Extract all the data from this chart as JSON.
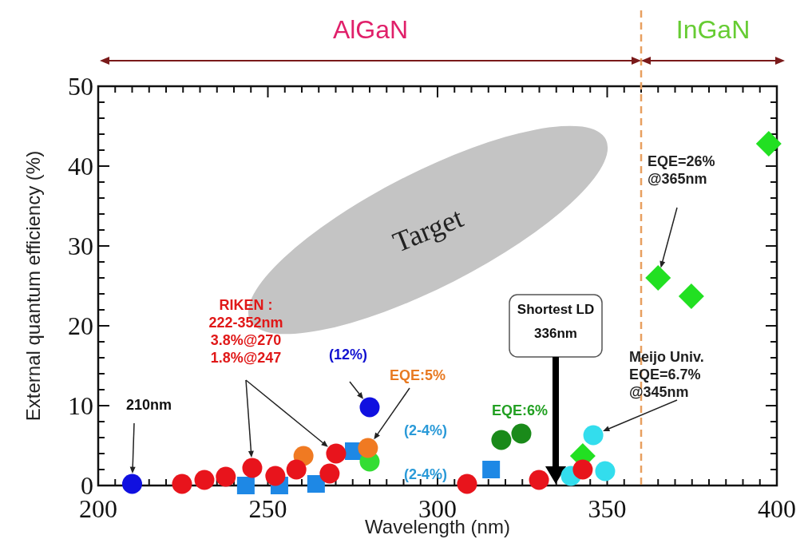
{
  "chart_data": {
    "type": "scatter",
    "xlabel": "Wavelength (nm)",
    "ylabel": "External quantum efficiency (%)",
    "xlim": [
      200,
      400
    ],
    "ylim": [
      0,
      50
    ],
    "xticks": [
      200,
      {
        "value": 205,
        "label": null
      },
      {
        "value": 210,
        "label": null
      },
      {
        "value": 215,
        "label": null
      },
      {
        "value": 220,
        "label": null
      },
      {
        "value": 225,
        "label": null
      },
      {
        "value": 230,
        "label": null
      },
      {
        "value": 235,
        "label": null
      },
      {
        "value": 240,
        "label": null
      },
      {
        "value": 245,
        "label": null
      },
      250,
      {
        "value": 255,
        "label": null
      },
      {
        "value": 260,
        "label": null
      },
      {
        "value": 265,
        "label": null
      },
      {
        "value": 270,
        "label": null
      },
      {
        "value": 275,
        "label": null
      },
      {
        "value": 280,
        "label": null
      },
      {
        "value": 285,
        "label": null
      },
      {
        "value": 290,
        "label": null
      },
      {
        "value": 295,
        "label": null
      },
      300,
      {
        "value": 305,
        "label": null
      },
      {
        "value": 310,
        "label": null
      },
      {
        "value": 315,
        "label": null
      },
      {
        "value": 320,
        "label": null
      },
      {
        "value": 325,
        "label": null
      },
      {
        "value": 330,
        "label": null
      },
      {
        "value": 335,
        "label": null
      },
      {
        "value": 340,
        "label": null
      },
      {
        "value": 345,
        "label": null
      },
      350,
      {
        "value": 355,
        "label": null
      },
      {
        "value": 360,
        "label": null
      },
      {
        "value": 365,
        "label": null
      },
      {
        "value": 370,
        "label": null
      },
      {
        "value": 375,
        "label": null
      },
      {
        "value": 380,
        "label": null
      },
      {
        "value": 385,
        "label": null
      },
      {
        "value": 390,
        "label": null
      },
      {
        "value": 395,
        "label": null
      },
      400
    ],
    "yticks": [
      0,
      {
        "value": 2,
        "label": null
      },
      {
        "value": 4,
        "label": null
      },
      {
        "value": 6,
        "label": null
      },
      {
        "value": 8,
        "label": null
      },
      10,
      {
        "value": 12,
        "label": null
      },
      {
        "value": 14,
        "label": null
      },
      {
        "value": 16,
        "label": null
      },
      {
        "value": 18,
        "label": null
      },
      20,
      {
        "value": 22,
        "label": null
      },
      {
        "value": 24,
        "label": null
      },
      {
        "value": 26,
        "label": null
      },
      {
        "value": 28,
        "label": null
      },
      30,
      {
        "value": 32,
        "label": null
      },
      {
        "value": 34,
        "label": null
      },
      {
        "value": 36,
        "label": null
      },
      {
        "value": 38,
        "label": null
      },
      40,
      {
        "value": 42,
        "label": null
      },
      {
        "value": 44,
        "label": null
      },
      {
        "value": 46,
        "label": null
      },
      {
        "value": 48,
        "label": null
      },
      50
    ],
    "grid": false,
    "marker": "circle",
    "series": [
      {
        "color": "#1e88e5",
        "marker": "square",
        "x": [
          243.5,
          253.4,
          264.2,
          275.3,
          315.8
        ],
        "values": [
          0,
          0,
          0.2,
          4.3,
          2.0
        ]
      },
      {
        "color": "#33dded",
        "x": [
          339.3,
          345.9,
          349.4
        ],
        "values": [
          1.2,
          6.3,
          1.8
        ]
      },
      {
        "color": "#22e022",
        "marker": "diamond",
        "x": [
          342.8,
          365,
          374.8,
          397.6
        ],
        "values": [
          3.7,
          26,
          23.7,
          42.8
        ]
      },
      {
        "color": "#33dd33",
        "x": [
          280
        ],
        "values": [
          3.0
        ]
      },
      {
        "color": "#f07a22",
        "x": [
          260.5,
          279.5
        ],
        "values": [
          3.7,
          4.7
        ]
      },
      {
        "color": "#e8141c",
        "x": [
          224.7,
          231.3,
          237.6,
          245.4,
          252.2,
          258.4,
          268.2,
          270.1,
          308.7,
          329.9,
          342.8
        ],
        "values": [
          0.2,
          0.7,
          1.1,
          2.2,
          1.2,
          2.0,
          1.5,
          4.0,
          0.2,
          0.7,
          2.0
        ]
      },
      {
        "color": "#1010e0",
        "x": [
          210,
          280
        ],
        "values": [
          0.2,
          9.8
        ]
      },
      {
        "color": "#1a8a1a",
        "x": [
          318.8,
          324.7
        ],
        "values": [
          5.7,
          6.5
        ]
      }
    ],
    "ref_lines": [
      {
        "axis": "x",
        "value": 360,
        "color": "#e8a060",
        "line_style": "dashed"
      }
    ],
    "annotations": [
      "210nm",
      "RIKEN :\n222-352nm\n3.8%@270\n1.8%@247",
      "(12%)",
      "EQE:5%",
      "(2-4%)",
      "(2-4%)",
      "EQE:6%",
      "Shortest LD\n336nm",
      "Meijo Univ.\nEQE=6.7%\n@345nm",
      "EQE=26%\n@365nm",
      "Target",
      "AlGaN",
      "InGaN"
    ]
  }
}
